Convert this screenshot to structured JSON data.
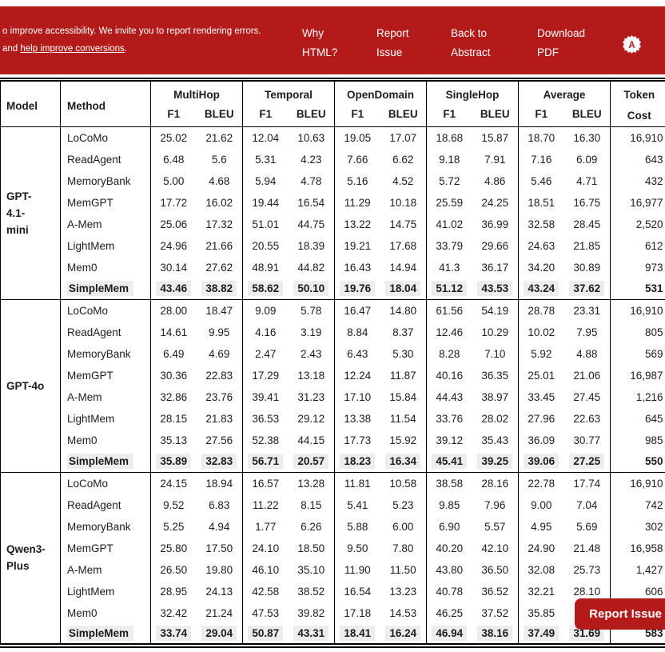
{
  "banner": {
    "bg": "#b31b1b",
    "notice": {
      "line1": "o improve accessibility. We invite you to report rendering errors.",
      "line2_prefix": "and ",
      "link_text": "help improve conversions",
      "line2_suffix": "."
    },
    "nav": [
      {
        "label": "Why HTML?"
      },
      {
        "label": "Report Issue"
      },
      {
        "label": "Back to Abstract"
      },
      {
        "label": "Download PDF"
      }
    ],
    "logo_letter": "A"
  },
  "floating_button": {
    "label": "Report Issue"
  },
  "table": {
    "headers": {
      "model": "Model",
      "method": "Method",
      "groups": [
        "MultiHop",
        "Temporal",
        "OpenDomain",
        "SingleHop",
        "Average"
      ],
      "sub": [
        "F1",
        "BLEU"
      ],
      "token": [
        "Token",
        "Cost"
      ]
    },
    "groups": [
      {
        "model": "GPT-4.1-mini",
        "model_lines": [
          "GPT-",
          "4.1-",
          "mini"
        ],
        "rows": [
          {
            "method": "LoCoMo",
            "highlight": false,
            "values": [
              "25.02",
              "21.62",
              "12.04",
              "10.63",
              "19.05",
              "17.07",
              "18.68",
              "15.87",
              "18.70",
              "16.30"
            ],
            "token": "16,910"
          },
          {
            "method": "ReadAgent",
            "highlight": false,
            "values": [
              "6.48",
              "5.6",
              "5.31",
              "4.23",
              "7.66",
              "6.62",
              "9.18",
              "7.91",
              "7.16",
              "6.09"
            ],
            "token": "643"
          },
          {
            "method": "MemoryBank",
            "highlight": false,
            "values": [
              "5.00",
              "4.68",
              "5.94",
              "4.78",
              "5.16",
              "4.52",
              "5.72",
              "4.86",
              "5.46",
              "4.71"
            ],
            "token": "432"
          },
          {
            "method": "MemGPT",
            "highlight": false,
            "values": [
              "17.72",
              "16.02",
              "19.44",
              "16.54",
              "11.29",
              "10.18",
              "25.59",
              "24.25",
              "18.51",
              "16.75"
            ],
            "token": "16,977"
          },
          {
            "method": "A-Mem",
            "highlight": false,
            "values": [
              "25.06",
              "17.32",
              "51.01",
              "44.75",
              "13.22",
              "14.75",
              "41.02",
              "36.99",
              "32.58",
              "28.45"
            ],
            "token": "2,520"
          },
          {
            "method": "LightMem",
            "highlight": false,
            "values": [
              "24.96",
              "21.66",
              "20.55",
              "18.39",
              "19.21",
              "17.68",
              "33.79",
              "29.66",
              "24.63",
              "21.85"
            ],
            "token": "612"
          },
          {
            "method": "Mem0",
            "highlight": false,
            "values": [
              "30.14",
              "27.62",
              "48.91",
              "44.82",
              "16.43",
              "14.94",
              "41.3",
              "36.17",
              "34.20",
              "30.89"
            ],
            "token": "973"
          },
          {
            "method": "SimpleMem",
            "highlight": true,
            "values": [
              "43.46",
              "38.82",
              "58.62",
              "50.10",
              "19.76",
              "18.04",
              "51.12",
              "43.53",
              "43.24",
              "37.62"
            ],
            "token": "531"
          }
        ]
      },
      {
        "model": "GPT-4o",
        "model_lines": [
          "GPT-4o"
        ],
        "rows": [
          {
            "method": "LoCoMo",
            "highlight": false,
            "values": [
              "28.00",
              "18.47",
              "9.09",
              "5.78",
              "16.47",
              "14.80",
              "61.56",
              "54.19",
              "28.78",
              "23.31"
            ],
            "token": "16,910"
          },
          {
            "method": "ReadAgent",
            "highlight": false,
            "values": [
              "14.61",
              "9.95",
              "4.16",
              "3.19",
              "8.84",
              "8.37",
              "12.46",
              "10.29",
              "10.02",
              "7.95"
            ],
            "token": "805"
          },
          {
            "method": "MemoryBank",
            "highlight": false,
            "values": [
              "6.49",
              "4.69",
              "2.47",
              "2.43",
              "6.43",
              "5.30",
              "8.28",
              "7.10",
              "5.92",
              "4.88"
            ],
            "token": "569"
          },
          {
            "method": "MemGPT",
            "highlight": false,
            "values": [
              "30.36",
              "22.83",
              "17.29",
              "13.18",
              "12.24",
              "11.87",
              "40.16",
              "36.35",
              "25.01",
              "21.06"
            ],
            "token": "16,987"
          },
          {
            "method": "A-Mem",
            "highlight": false,
            "values": [
              "32.86",
              "23.76",
              "39.41",
              "31.23",
              "17.10",
              "15.84",
              "44.43",
              "38.97",
              "33.45",
              "27.45"
            ],
            "token": "1,216"
          },
          {
            "method": "LightMem",
            "highlight": false,
            "values": [
              "28.15",
              "21.83",
              "36.53",
              "29.12",
              "13.38",
              "11.54",
              "33.76",
              "28.02",
              "27.96",
              "22.63"
            ],
            "token": "645"
          },
          {
            "method": "Mem0",
            "highlight": false,
            "values": [
              "35.13",
              "27.56",
              "52.38",
              "44.15",
              "17.73",
              "15.92",
              "39.12",
              "35.43",
              "36.09",
              "30.77"
            ],
            "token": "985"
          },
          {
            "method": "SimpleMem",
            "highlight": true,
            "values": [
              "35.89",
              "32.83",
              "56.71",
              "20.57",
              "18.23",
              "16.34",
              "45.41",
              "39.25",
              "39.06",
              "27.25"
            ],
            "token": "550"
          }
        ]
      },
      {
        "model": "Qwen3-Plus",
        "model_lines": [
          "Qwen3-",
          "Plus"
        ],
        "rows": [
          {
            "method": "LoCoMo",
            "highlight": false,
            "values": [
              "24.15",
              "18.94",
              "16.57",
              "13.28",
              "11.81",
              "10.58",
              "38.58",
              "28.16",
              "22.78",
              "17.74"
            ],
            "token": "16,910"
          },
          {
            "method": "ReadAgent",
            "highlight": false,
            "values": [
              "9.52",
              "6.83",
              "11.22",
              "8.15",
              "5.41",
              "5.23",
              "9.85",
              "7.96",
              "9.00",
              "7.04"
            ],
            "token": "742"
          },
          {
            "method": "MemoryBank",
            "highlight": false,
            "values": [
              "5.25",
              "4.94",
              "1.77",
              "6.26",
              "5.88",
              "6.00",
              "6.90",
              "5.57",
              "4.95",
              "5.69"
            ],
            "token": "302"
          },
          {
            "method": "MemGPT",
            "highlight": false,
            "values": [
              "25.80",
              "17.50",
              "24.10",
              "18.50",
              "9.50",
              "7.80",
              "40.20",
              "42.10",
              "24.90",
              "21.48"
            ],
            "token": "16,958"
          },
          {
            "method": "A-Mem",
            "highlight": false,
            "values": [
              "26.50",
              "19.80",
              "46.10",
              "35.10",
              "11.90",
              "11.50",
              "43.80",
              "36.50",
              "32.08",
              "25.73"
            ],
            "token": "1,427"
          },
          {
            "method": "LightMem",
            "highlight": false,
            "values": [
              "28.95",
              "24.13",
              "42.58",
              "38.52",
              "16.54",
              "13.23",
              "40.78",
              "36.52",
              "32.21",
              "28.10"
            ],
            "token": "606"
          },
          {
            "method": "Mem0",
            "highlight": false,
            "values": [
              "32.42",
              "21.24",
              "47.53",
              "39.82",
              "17.18",
              "14.53",
              "46.25",
              "37.52",
              "35.85",
              ""
            ],
            "token": ""
          },
          {
            "method": "SimpleMem",
            "highlight": true,
            "values": [
              "33.74",
              "29.04",
              "50.87",
              "43.31",
              "18.41",
              "16.24",
              "46.94",
              "38.16",
              "37.49",
              "31.69"
            ],
            "token": "583"
          }
        ]
      }
    ]
  }
}
